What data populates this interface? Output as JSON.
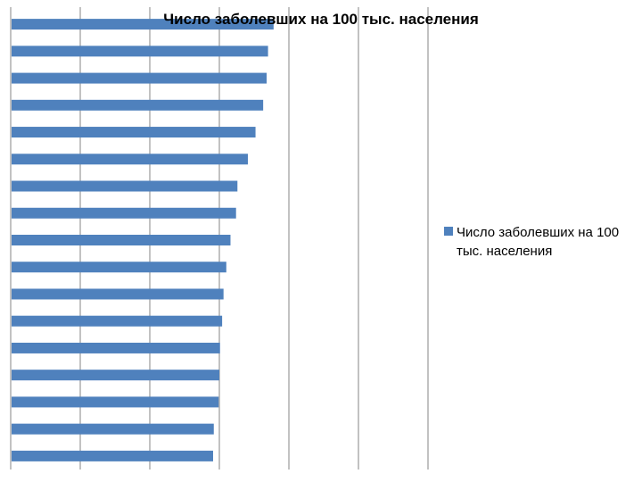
{
  "chart_data": {
    "type": "bar",
    "orientation": "horizontal",
    "title": "Число заболевших на 100 тыс. населения",
    "series": [
      {
        "name": "Число заболевших на 100 тыс. населения",
        "color": "#4F81BD",
        "values": [
          378,
          370,
          368,
          363,
          352,
          341,
          326,
          324,
          316,
          310,
          306,
          304,
          301,
          300,
          299,
          292,
          291
        ]
      }
    ],
    "xlim": [
      0,
      600
    ],
    "grid": true,
    "legend_position": "right",
    "legend_lines": [
      "Число заболевших на 100",
      "тыс. населения"
    ]
  }
}
